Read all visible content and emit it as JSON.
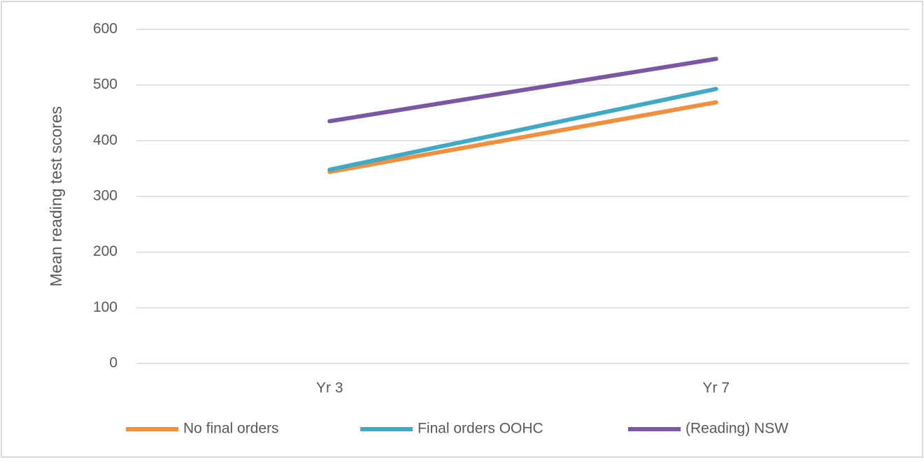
{
  "chart_data": {
    "type": "line",
    "y_label": "Mean reading test scores",
    "categories": [
      "Yr 3",
      "Yr 7"
    ],
    "series": [
      {
        "name": "No final orders",
        "color": "#f28e3c",
        "values": [
          344,
          469
        ]
      },
      {
        "name": "Final orders OOHC",
        "color": "#3fa9c6",
        "values": [
          348,
          493
        ]
      },
      {
        "name": "(Reading) NSW",
        "color": "#7b56a2",
        "values": [
          435,
          547
        ]
      }
    ],
    "ylim": [
      0,
      600
    ],
    "yticks": [
      0,
      100,
      200,
      300,
      400,
      500,
      600
    ],
    "grid": true,
    "legend": "bottom"
  }
}
